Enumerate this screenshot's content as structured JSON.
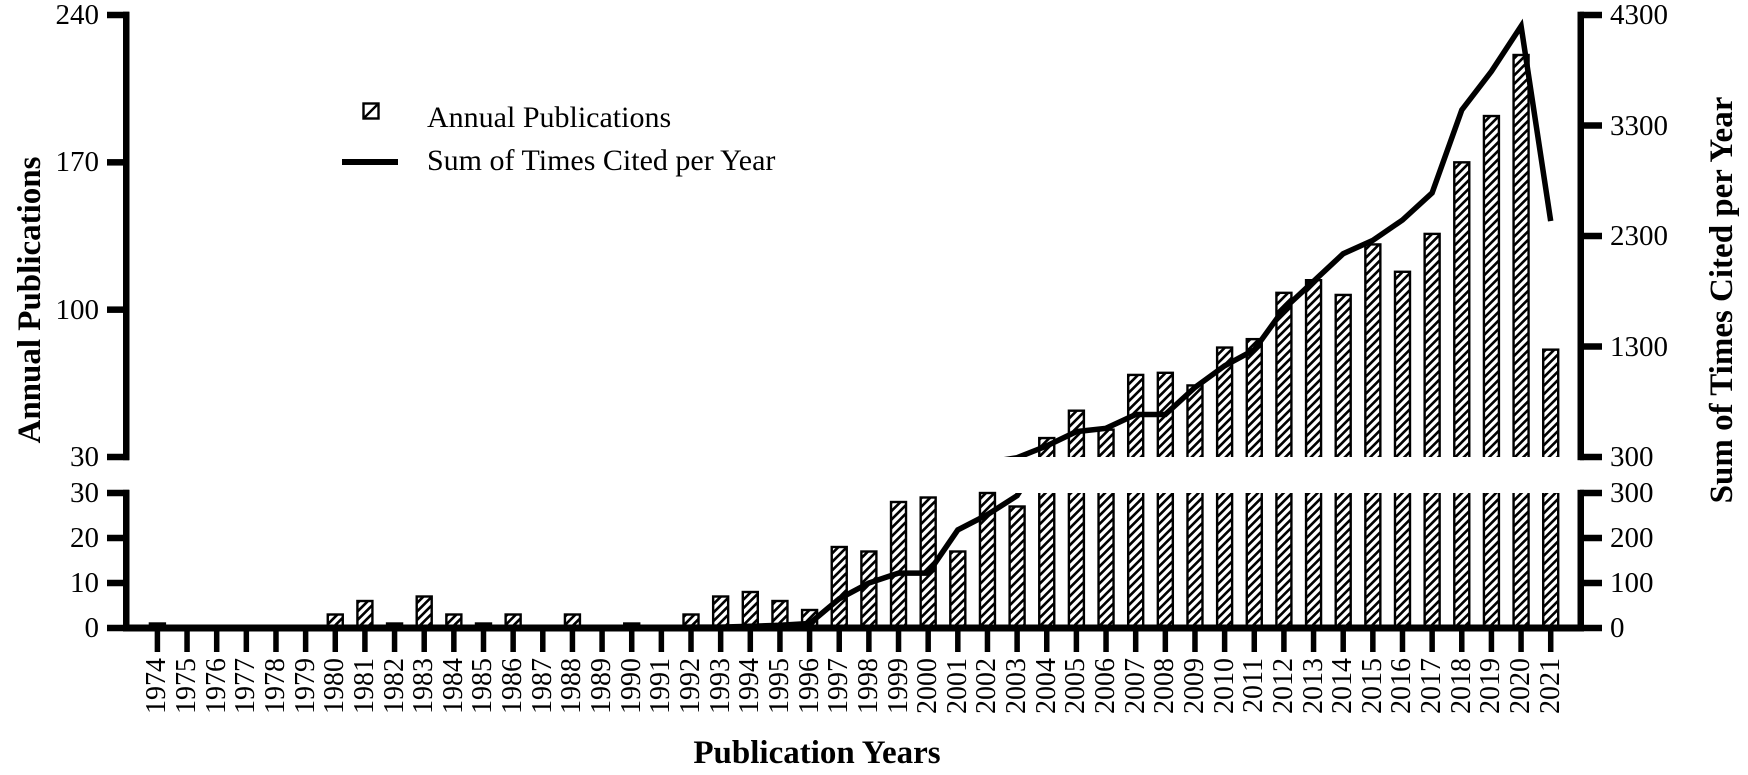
{
  "figure": {
    "legend": {
      "bar_label": "Annual Publications",
      "line_label": "Sum of Times Cited per Year"
    },
    "x_axis": {
      "title": "Publication Years"
    },
    "y_axis_left": {
      "title": "Annual Publications"
    },
    "y_axis_right": {
      "title": "Sum of Times Cited per Year"
    },
    "colors": {
      "ink": "#000000",
      "background": "#ffffff"
    }
  },
  "chart_data": {
    "type": "bar",
    "title": "",
    "xlabel": "Publication Years",
    "ylabel_left": "Annual Publications",
    "ylabel_right": "Sum of Times Cited per Year",
    "axis_break": true,
    "legend_position": "upper-left-inside",
    "grid": false,
    "x": [
      1974,
      1975,
      1976,
      1977,
      1978,
      1979,
      1980,
      1981,
      1982,
      1983,
      1984,
      1985,
      1986,
      1987,
      1988,
      1989,
      1990,
      1991,
      1992,
      1993,
      1994,
      1995,
      1996,
      1997,
      1998,
      1999,
      2000,
      2001,
      2002,
      2003,
      2004,
      2005,
      2006,
      2007,
      2008,
      2009,
      2010,
      2011,
      2012,
      2013,
      2014,
      2015,
      2016,
      2017,
      2018,
      2019,
      2020,
      2021
    ],
    "series": [
      {
        "name": "Annual Publications",
        "type": "bar",
        "axis": "left",
        "values": [
          1,
          0,
          0,
          0,
          0,
          0,
          3,
          6,
          1,
          7,
          3,
          1,
          3,
          0,
          3,
          0,
          1,
          0,
          3,
          7,
          8,
          6,
          4,
          18,
          17,
          28,
          29,
          17,
          30,
          27,
          39,
          52,
          43,
          69,
          70,
          64,
          82,
          86,
          108,
          114,
          107,
          131,
          118,
          136,
          170,
          192,
          221,
          81
        ]
      },
      {
        "name": "Sum of Times Cited per Year",
        "type": "line",
        "axis": "right",
        "values": [
          0,
          0,
          0,
          0,
          0,
          0,
          0,
          0,
          0,
          0,
          0,
          0,
          0,
          0,
          0,
          0,
          0,
          0,
          2,
          2,
          4,
          6,
          10,
          65,
          100,
          122,
          122,
          218,
          252,
          294,
          400,
          530,
          560,
          685,
          685,
          930,
          1125,
          1270,
          1640,
          1890,
          2140,
          2260,
          2445,
          2690,
          3440,
          3790,
          4200,
          2435
        ]
      }
    ],
    "y_left_ticks_upper": [
      240,
      170,
      100,
      30
    ],
    "y_left_ticks_lower": [
      30,
      20,
      10,
      0
    ],
    "y_right_ticks_upper": [
      4300,
      3300,
      2300,
      1300,
      300
    ],
    "y_right_ticks_lower": [
      300,
      200,
      100,
      0
    ],
    "y_left_range_upper": [
      30,
      240
    ],
    "y_left_range_lower": [
      0,
      30
    ],
    "y_right_range_upper": [
      300,
      4300
    ],
    "y_right_range_lower": [
      0,
      300
    ]
  }
}
